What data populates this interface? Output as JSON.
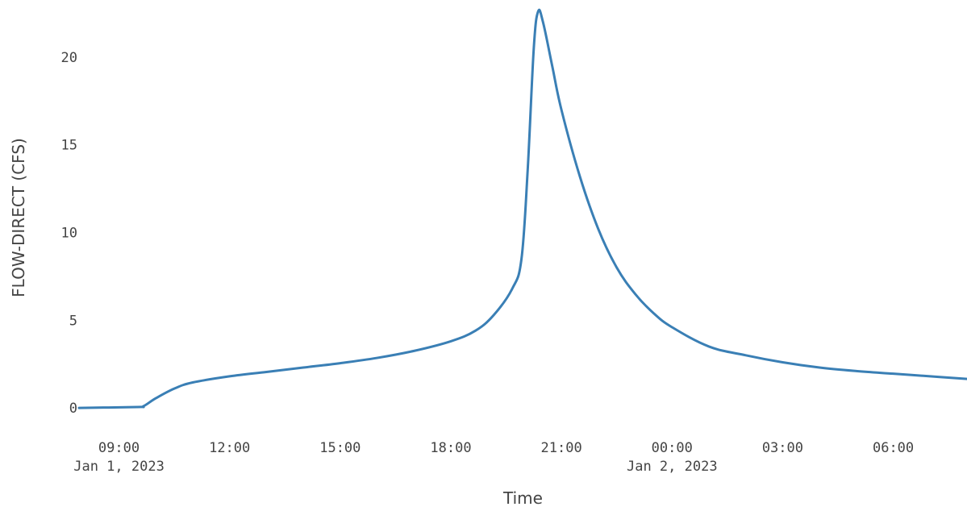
{
  "chart_data": {
    "type": "line",
    "title": "",
    "xlabel": "Time",
    "ylabel": "FLOW-DIRECT (CFS)",
    "colors": {
      "line": "#3a7fb5",
      "text": "#444444",
      "background": "#ffffff"
    },
    "grid": false,
    "legend": "none",
    "xlim": [
      "2023-01-01T07:55",
      "2023-01-02T08:00"
    ],
    "ylim": [
      -1.1,
      22.8
    ],
    "x_ticks": [
      {
        "value": "2023-01-01T09:00",
        "label": "09:00",
        "sublabel": "Jan 1, 2023"
      },
      {
        "value": "2023-01-01T12:00",
        "label": "12:00",
        "sublabel": ""
      },
      {
        "value": "2023-01-01T15:00",
        "label": "15:00",
        "sublabel": ""
      },
      {
        "value": "2023-01-01T18:00",
        "label": "18:00",
        "sublabel": ""
      },
      {
        "value": "2023-01-01T21:00",
        "label": "21:00",
        "sublabel": ""
      },
      {
        "value": "2023-01-02T00:00",
        "label": "00:00",
        "sublabel": "Jan 2, 2023"
      },
      {
        "value": "2023-01-02T03:00",
        "label": "03:00",
        "sublabel": ""
      },
      {
        "value": "2023-01-02T06:00",
        "label": "06:00",
        "sublabel": ""
      }
    ],
    "y_ticks": [
      {
        "value": 0,
        "label": "0"
      },
      {
        "value": 5,
        "label": "5"
      },
      {
        "value": 10,
        "label": "10"
      },
      {
        "value": 15,
        "label": "15"
      },
      {
        "value": 20,
        "label": "20"
      }
    ],
    "x": [
      "2023-01-01T07:55",
      "2023-01-01T09:30",
      "2023-01-01T09:40",
      "2023-01-01T10:00",
      "2023-01-01T10:30",
      "2023-01-01T11:00",
      "2023-01-01T12:00",
      "2023-01-01T13:00",
      "2023-01-01T14:00",
      "2023-01-01T15:00",
      "2023-01-01T16:00",
      "2023-01-01T17:00",
      "2023-01-01T18:00",
      "2023-01-01T18:40",
      "2023-01-01T19:10",
      "2023-01-01T19:40",
      "2023-01-01T19:55",
      "2023-01-01T20:05",
      "2023-01-01T20:15",
      "2023-01-01T20:22",
      "2023-01-01T20:30",
      "2023-01-01T20:45",
      "2023-01-01T21:00",
      "2023-01-01T21:30",
      "2023-01-01T22:00",
      "2023-01-01T22:30",
      "2023-01-01T23:00",
      "2023-01-01T23:30",
      "2023-01-02T00:00",
      "2023-01-02T01:00",
      "2023-01-02T02:00",
      "2023-01-02T03:00",
      "2023-01-02T04:00",
      "2023-01-02T05:00",
      "2023-01-02T06:00",
      "2023-01-02T07:00",
      "2023-01-02T08:00"
    ],
    "y": [
      0.0,
      0.05,
      0.1,
      0.55,
      1.1,
      1.45,
      1.8,
      2.05,
      2.3,
      2.55,
      2.85,
      3.25,
      3.8,
      4.4,
      5.3,
      6.8,
      8.5,
      13.5,
      20.5,
      22.6,
      22.0,
      19.5,
      17.0,
      13.2,
      10.2,
      8.0,
      6.5,
      5.4,
      4.6,
      3.5,
      3.0,
      2.6,
      2.3,
      2.1,
      1.95,
      1.8,
      1.65
    ]
  }
}
